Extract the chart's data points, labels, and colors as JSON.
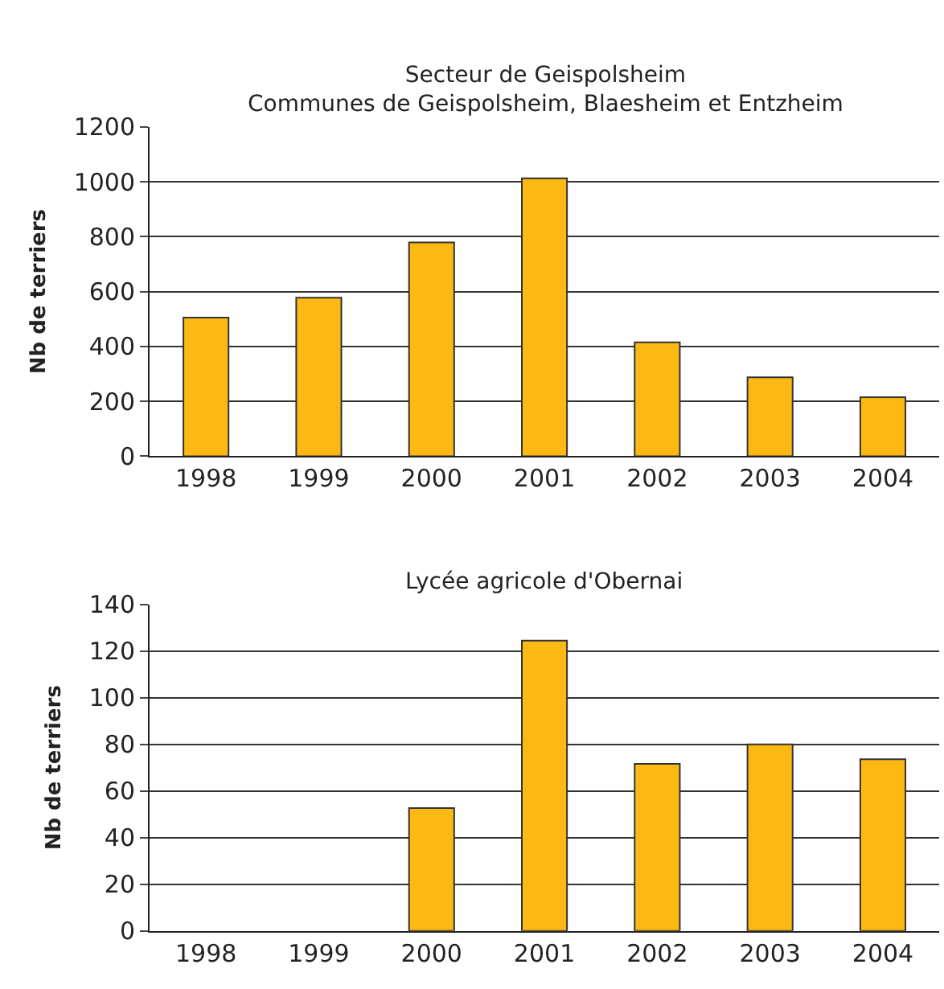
{
  "chart_data": [
    {
      "type": "bar",
      "title": "Secteur de Geispolsheim",
      "subtitle": "Communes de Geispolsheim, Blaesheim et Entzheim",
      "ylabel": "Nb de terriers",
      "categories": [
        "1998",
        "1999",
        "2000",
        "2001",
        "2002",
        "2003",
        "2004"
      ],
      "values": [
        505,
        578,
        779,
        1013,
        415,
        288,
        215
      ],
      "color": "#fdb913",
      "ylim": [
        0,
        1200
      ],
      "yticks": [
        0,
        200,
        400,
        600,
        800,
        1000,
        1200
      ],
      "grid": "y"
    },
    {
      "type": "bar",
      "title": "Lycée agricole d'Obernai",
      "ylabel": "Nb de terriers",
      "categories": [
        "1998",
        "1999",
        "2000",
        "2001",
        "2002",
        "2003",
        "2004"
      ],
      "values": [
        null,
        null,
        52.7,
        124.5,
        71.6,
        80,
        73.6
      ],
      "color": "#fdb913",
      "ylim": [
        0,
        140
      ],
      "yticks": [
        0,
        20,
        40,
        60,
        80,
        100,
        120,
        140
      ],
      "grid": "y"
    }
  ]
}
